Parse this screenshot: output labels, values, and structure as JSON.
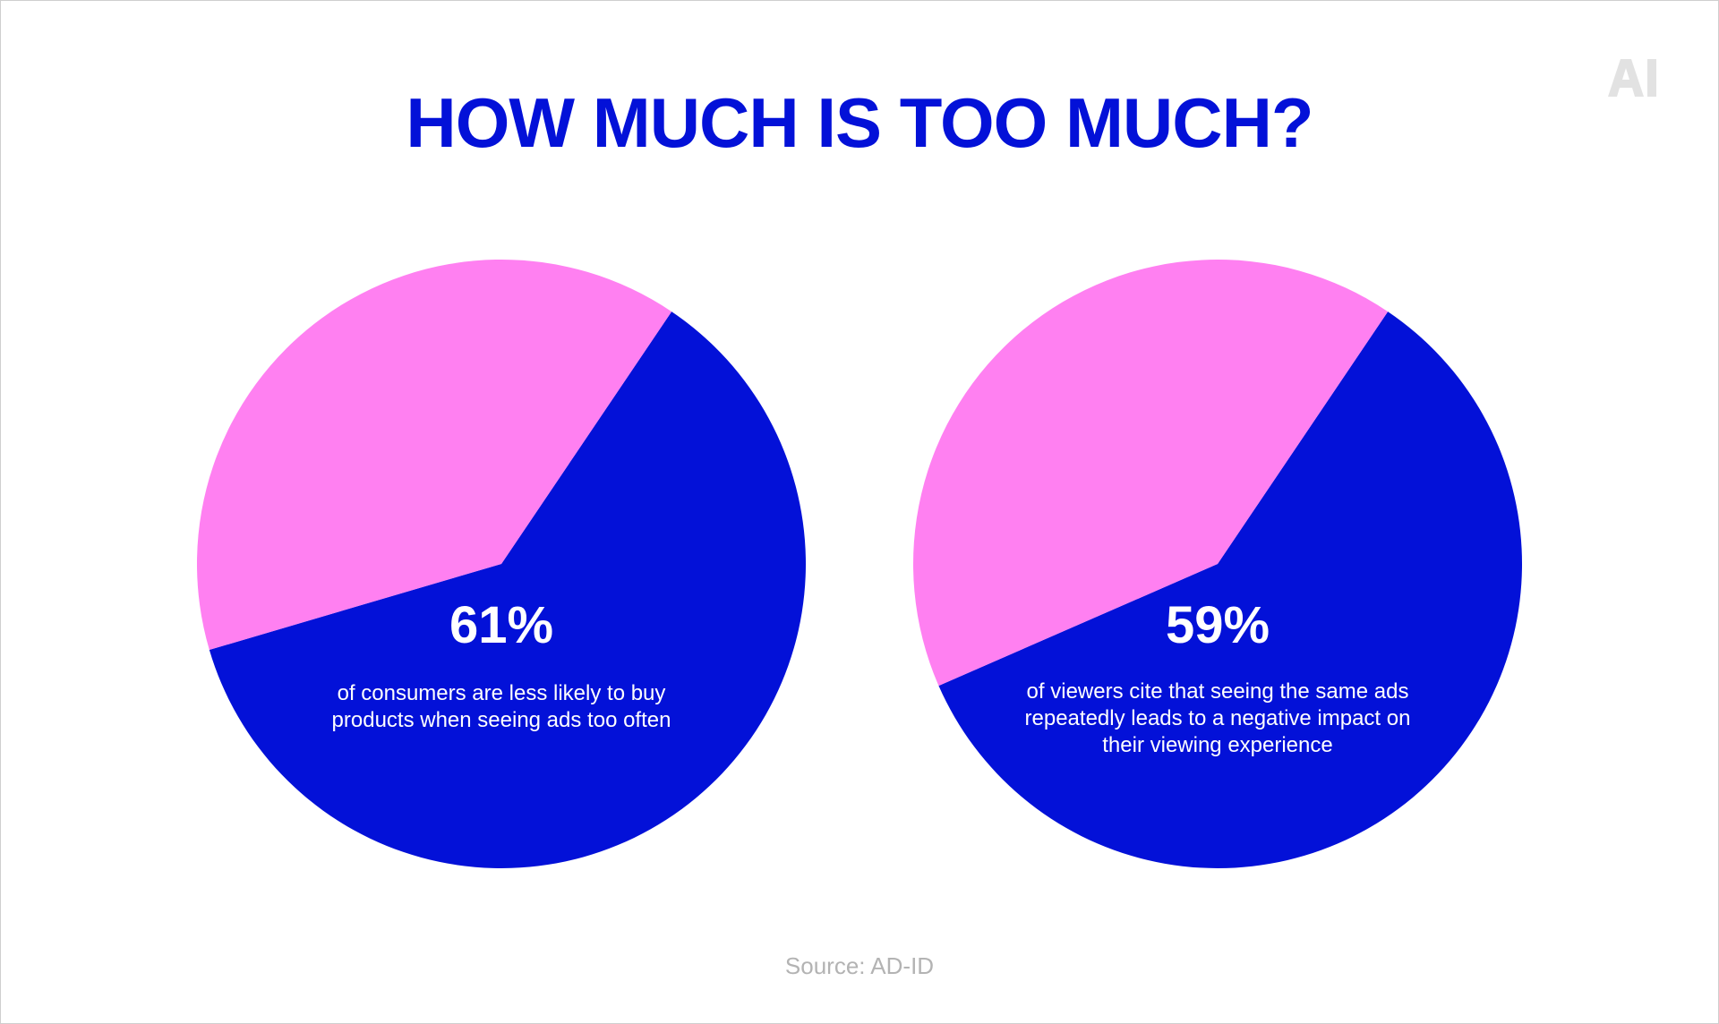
{
  "title": "HOW MUCH IS TOO MUCH?",
  "logo_text": "AI",
  "source": "Source: AD-ID",
  "colors": {
    "primary": "#0311d8",
    "secondary": "#ff80f1",
    "logo": "#e2e2e2",
    "source": "#b3b3b3"
  },
  "chart_data": [
    {
      "type": "pie",
      "values": [
        61,
        39
      ],
      "colors": [
        "#0311d8",
        "#ff80f1"
      ],
      "label": "61%",
      "description": [
        "of consumers are less likely to buy",
        "products when seeing ads too often"
      ]
    },
    {
      "type": "pie",
      "values": [
        59,
        41
      ],
      "colors": [
        "#0311d8",
        "#ff80f1"
      ],
      "label": "59%",
      "description": [
        "of viewers cite that seeing the same ads",
        "repeatedly leads to a negative impact on",
        "their viewing experience"
      ]
    }
  ]
}
